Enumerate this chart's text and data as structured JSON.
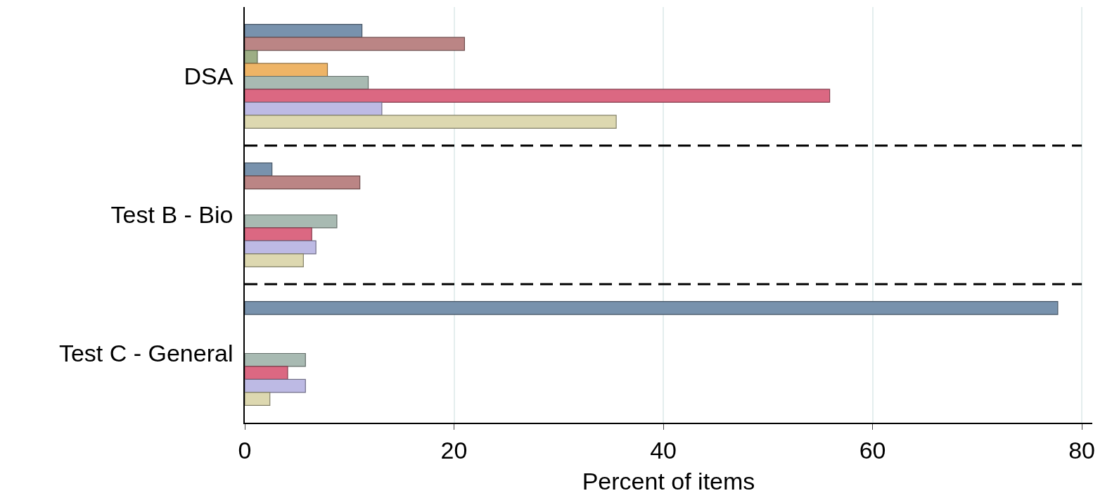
{
  "chart_data": {
    "type": "bar",
    "orientation": "horizontal",
    "xlabel": "Percent of items",
    "categories": [
      "DSA",
      "Test B - Bio",
      "Test C - General"
    ],
    "series": [
      {
        "color": "#7892ad",
        "values": [
          11.2,
          2.6,
          77.7
        ]
      },
      {
        "color": "#bb8585",
        "values": [
          21.0,
          11.0,
          null
        ]
      },
      {
        "color": "#9dae85",
        "values": [
          1.2,
          null,
          null
        ]
      },
      {
        "color": "#eeb466",
        "values": [
          7.9,
          null,
          null
        ]
      },
      {
        "color": "#a8bab2",
        "values": [
          11.8,
          8.8,
          5.8
        ]
      },
      {
        "color": "#db6882",
        "values": [
          55.9,
          6.4,
          4.1
        ]
      },
      {
        "color": "#bdbae4",
        "values": [
          13.1,
          6.8,
          5.8
        ]
      },
      {
        "color": "#ddd8b0",
        "values": [
          35.5,
          5.6,
          2.4
        ]
      }
    ],
    "xlim": [
      0,
      81
    ],
    "xticks": [
      0,
      20,
      40,
      60,
      80
    ],
    "grid": "x",
    "legend": false
  }
}
